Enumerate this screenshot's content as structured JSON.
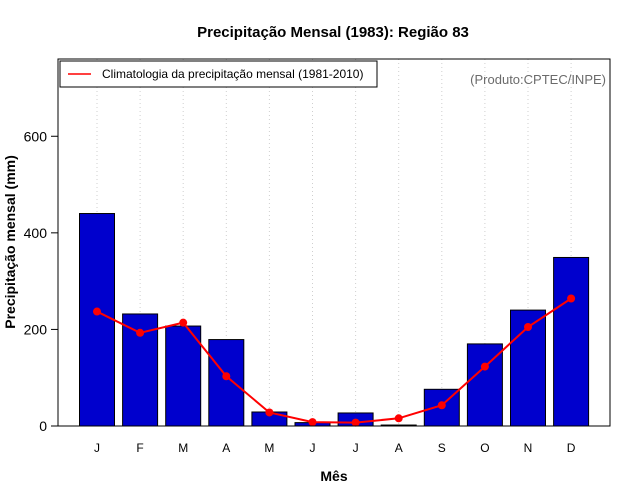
{
  "chart_data": {
    "type": "bar",
    "title": "Precipitação Mensal (1983): Região 83",
    "xlabel": "Mês",
    "ylabel": "Precipitação mensal (mm)",
    "ylim": [
      0,
      760
    ],
    "yticks": [
      0,
      200,
      400,
      600
    ],
    "categories": [
      "J",
      "F",
      "M",
      "A",
      "M",
      "J",
      "J",
      "A",
      "S",
      "O",
      "N",
      "D"
    ],
    "series": [
      {
        "name": "Precipitação mensal 1983",
        "type": "bar",
        "color": "#0000cd",
        "values": [
          440,
          232,
          207,
          179,
          29,
          7,
          27,
          2,
          76,
          170,
          240,
          349
        ]
      },
      {
        "name": "Climatologia da precipitação mensal (1981-2010)",
        "type": "line",
        "color": "#ff0000",
        "values": [
          237,
          193,
          214,
          103,
          28,
          8,
          7,
          16,
          43,
          123,
          205,
          264
        ]
      }
    ],
    "legend": {
      "position": "top-left",
      "entries": [
        "Climatologia da precipitação mensal (1981-2010)"
      ]
    },
    "annotation": "(Produto:CPTEC/INPE)",
    "grid": "vertical-dotted"
  }
}
